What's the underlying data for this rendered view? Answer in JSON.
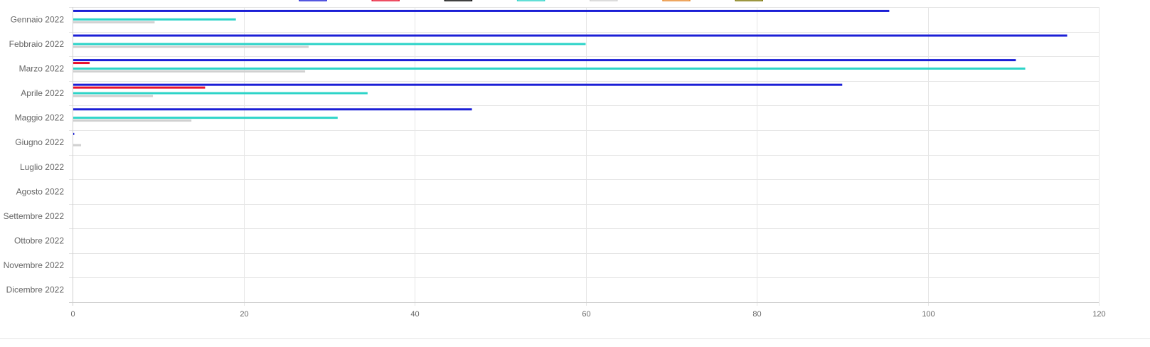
{
  "chart_data": {
    "type": "bar",
    "orientation": "horizontal",
    "categories": [
      "Gennaio 2022",
      "Febbraio 2022",
      "Marzo 2022",
      "Aprile 2022",
      "Maggio 2022",
      "Giugno 2022",
      "Luglio 2022",
      "Agosto 2022",
      "Settembre 2022",
      "Ottobre 2022",
      "Novembre 2022",
      "Dicembre 2022"
    ],
    "series": [
      {
        "color": "#1b1fd6",
        "values": [
          95.5,
          116.3,
          110.3,
          90.0,
          46.7,
          0.2,
          0,
          0,
          0,
          0,
          0,
          0
        ]
      },
      {
        "color": "#e8122e",
        "values": [
          0,
          0,
          2.0,
          15.5,
          0,
          0,
          0,
          0,
          0,
          0,
          0,
          0
        ]
      },
      {
        "color": "#000000",
        "values": [
          0,
          0,
          0,
          0,
          0,
          0,
          0,
          0,
          0,
          0,
          0,
          0
        ]
      },
      {
        "color": "#2dd4c8",
        "values": [
          19.1,
          60.0,
          111.4,
          34.5,
          31.0,
          0,
          0,
          0,
          0,
          0,
          0,
          0
        ]
      },
      {
        "color": "#d0d0d0",
        "values": [
          9.6,
          27.6,
          27.2,
          9.4,
          13.9,
          1.0,
          0,
          0,
          0,
          0,
          0,
          0
        ]
      },
      {
        "color": "#e8892a",
        "values": [
          0,
          0,
          0,
          0,
          0,
          0,
          0,
          0,
          0,
          0,
          0,
          0
        ]
      },
      {
        "color": "#7a7300",
        "values": [
          0,
          0,
          0,
          0,
          0,
          0,
          0,
          0,
          0,
          0,
          0,
          0
        ]
      }
    ],
    "xlim": [
      0,
      120
    ],
    "xticks": [
      "0",
      "20",
      "40",
      "60",
      "80",
      "100",
      "120"
    ],
    "grid": true,
    "legend_position": "top"
  }
}
